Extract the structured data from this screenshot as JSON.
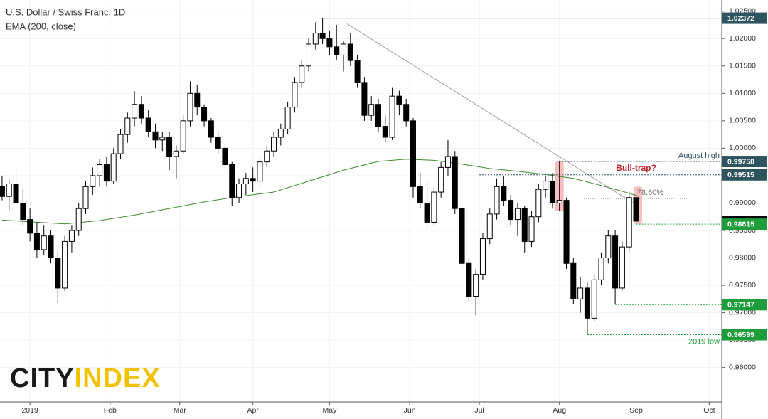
{
  "chart_data": {
    "type": "candlestick",
    "title": "U.S. Dollar / Swiss Franc, 1D",
    "subtitle": "EMA (200, close)",
    "logo": {
      "city": "CITY",
      "index": "INDEX"
    },
    "xlim": [
      -8.6,
      198.6
    ],
    "ylim": [
      0.95373,
      1.02704
    ],
    "xticks": [
      {
        "value": 0,
        "label": "2019"
      },
      {
        "value": 23,
        "label": "Feb"
      },
      {
        "value": 43,
        "label": "Mar"
      },
      {
        "value": 64,
        "label": "Apr"
      },
      {
        "value": 86,
        "label": "May"
      },
      {
        "value": 109,
        "label": "Jun"
      },
      {
        "value": 129,
        "label": "Jul"
      },
      {
        "value": 152,
        "label": "Aug"
      },
      {
        "value": 174,
        "label": "Sep"
      },
      {
        "value": 195,
        "label": "Oct"
      }
    ],
    "yticks": [
      {
        "value": 0.96,
        "label": "0.96000"
      },
      {
        "value": 0.965,
        "label": "0.96500"
      },
      {
        "value": 0.97,
        "label": "0.97000"
      },
      {
        "value": 0.975,
        "label": "0.97500"
      },
      {
        "value": 0.98,
        "label": "0.98000"
      },
      {
        "value": 0.985,
        "label": "0.98500"
      },
      {
        "value": 0.99,
        "label": "0.99000"
      },
      {
        "value": 0.995,
        "label": "0.99500"
      },
      {
        "value": 1.0,
        "label": "1.00000"
      },
      {
        "value": 1.005,
        "label": "1.00500"
      },
      {
        "value": 1.01,
        "label": "1.01000"
      },
      {
        "value": 1.015,
        "label": "1.01500"
      },
      {
        "value": 1.02,
        "label": "1.02000"
      },
      {
        "value": 1.025,
        "label": "1.02500"
      }
    ],
    "grid": true,
    "up_color": "#ffffff",
    "down_color": "#000000",
    "candles": {
      "x": [
        -8,
        -6,
        -4,
        -2,
        0,
        2,
        4,
        6,
        8,
        10,
        12,
        14,
        16,
        18,
        20,
        22,
        24,
        26,
        28,
        30,
        32,
        34,
        36,
        38,
        40,
        42,
        44,
        46,
        48,
        50,
        52,
        54,
        56,
        58,
        60,
        62,
        64,
        66,
        68,
        70,
        72,
        74,
        76,
        78,
        80,
        82,
        84,
        86,
        88,
        90,
        92,
        94,
        96,
        98,
        100,
        102,
        104,
        106,
        108,
        110,
        112,
        114,
        116,
        118,
        120,
        122,
        124,
        126,
        128,
        130,
        132,
        134,
        136,
        138,
        140,
        142,
        144,
        146,
        148,
        150,
        152,
        154,
        156,
        158,
        160,
        162,
        164,
        166,
        168,
        170,
        172,
        174
      ],
      "open": [
        0.993,
        0.9912,
        0.9935,
        0.99,
        0.987,
        0.9845,
        0.9815,
        0.984,
        0.98,
        0.9745,
        0.983,
        0.985,
        0.989,
        0.993,
        0.995,
        0.997,
        0.994,
        0.999,
        1.0025,
        1.0055,
        1.008,
        1.0055,
        1.003,
        1.0015,
        1.002,
        0.9985,
        0.9995,
        1.005,
        1.01,
        1.0075,
        1.005,
        1.002,
        1.0,
        0.997,
        0.991,
        0.9935,
        0.9945,
        0.994,
        0.9975,
        0.9995,
        1.002,
        1.0035,
        1.0075,
        1.012,
        1.015,
        1.019,
        1.021,
        1.02,
        1.0185,
        1.017,
        1.019,
        1.016,
        1.012,
        1.006,
        1.008,
        1.004,
        1.002,
        1.0095,
        1.008,
        1.005,
        0.993,
        0.99,
        0.9865,
        0.992,
        0.9965,
        0.9985,
        0.989,
        0.979,
        0.973,
        0.977,
        0.9835,
        0.988,
        0.993,
        0.9905,
        0.987,
        0.989,
        0.983,
        0.9875,
        0.9925,
        0.994,
        0.99,
        0.9905,
        0.979,
        0.9725,
        0.9745,
        0.969,
        0.976,
        0.98,
        0.984,
        0.9745,
        0.982,
        0.991
      ],
      "high": [
        0.995,
        0.9945,
        0.996,
        0.9925,
        0.989,
        0.9865,
        0.986,
        0.985,
        0.9815,
        0.984,
        0.986,
        0.99,
        0.994,
        0.9965,
        0.998,
        0.9985,
        1.0,
        1.0035,
        1.0065,
        1.0104,
        1.0095,
        1.007,
        1.0045,
        1.003,
        1.003,
        1.0005,
        1.006,
        1.0122,
        1.0115,
        1.008,
        1.0055,
        1.003,
        1.001,
        0.9975,
        0.9945,
        0.9955,
        0.9965,
        0.9985,
        1.0005,
        1.003,
        1.0045,
        1.0085,
        1.013,
        1.016,
        1.02,
        1.023,
        1.0237,
        1.0215,
        1.0225,
        1.0195,
        1.021,
        1.017,
        1.013,
        1.0095,
        1.009,
        1.006,
        1.011,
        1.0105,
        1.009,
        1.0055,
        0.9955,
        0.994,
        0.993,
        0.9975,
        1.0015,
        0.9995,
        0.9895,
        0.98,
        0.978,
        0.9845,
        0.989,
        0.9945,
        0.995,
        0.9915,
        0.99,
        0.9895,
        0.9885,
        0.9935,
        0.995,
        0.9955,
        0.9976,
        0.991,
        0.98,
        0.9765,
        0.9755,
        0.977,
        0.981,
        0.985,
        0.985,
        0.983,
        0.9921,
        0.992
      ],
      "low": [
        0.9905,
        0.9885,
        0.989,
        0.986,
        0.983,
        0.98,
        0.9805,
        0.979,
        0.9718,
        0.974,
        0.981,
        0.984,
        0.988,
        0.9915,
        0.993,
        0.993,
        0.9935,
        0.998,
        1.001,
        1.004,
        1.0045,
        1.002,
        1.0,
        0.9995,
        0.996,
        0.9945,
        0.999,
        1.004,
        1.006,
        1.004,
        1.001,
        0.999,
        0.996,
        0.9895,
        0.99,
        0.9915,
        0.992,
        0.993,
        0.9965,
        0.9985,
        1.0005,
        1.0025,
        1.0065,
        1.011,
        1.014,
        1.018,
        1.019,
        1.017,
        1.016,
        1.014,
        1.015,
        1.011,
        1.005,
        1.005,
        1.003,
        1.001,
        1.0015,
        1.006,
        1.004,
        0.991,
        0.989,
        0.9855,
        0.986,
        0.991,
        0.995,
        0.988,
        0.978,
        0.972,
        0.9695,
        0.976,
        0.9825,
        0.987,
        0.9895,
        0.986,
        0.984,
        0.981,
        0.982,
        0.9865,
        0.991,
        0.989,
        0.9885,
        0.978,
        0.9715,
        0.97,
        0.966,
        0.9685,
        0.975,
        0.979,
        0.9715,
        0.974,
        0.981,
        0.986
      ],
      "close": [
        0.9912,
        0.9935,
        0.99,
        0.987,
        0.9845,
        0.9815,
        0.984,
        0.98,
        0.9745,
        0.983,
        0.985,
        0.989,
        0.993,
        0.995,
        0.997,
        0.994,
        0.999,
        1.0025,
        1.0055,
        1.008,
        1.0055,
        1.003,
        1.0015,
        1.002,
        0.9985,
        0.9995,
        1.005,
        1.01,
        1.0075,
        1.005,
        1.002,
        1.0,
        0.997,
        0.991,
        0.9935,
        0.9945,
        0.994,
        0.9975,
        0.9995,
        1.002,
        1.0035,
        1.0075,
        1.012,
        1.015,
        1.019,
        1.021,
        1.02,
        1.0185,
        1.017,
        1.019,
        1.016,
        1.012,
        1.006,
        1.008,
        1.004,
        1.002,
        1.0095,
        1.008,
        1.005,
        0.993,
        0.99,
        0.9865,
        0.992,
        0.9965,
        0.9985,
        0.989,
        0.979,
        0.973,
        0.977,
        0.9835,
        0.988,
        0.993,
        0.9905,
        0.987,
        0.989,
        0.983,
        0.9875,
        0.9925,
        0.994,
        0.99,
        0.9905,
        0.979,
        0.9725,
        0.9745,
        0.969,
        0.976,
        0.98,
        0.984,
        0.9745,
        0.982,
        0.991,
        0.9867
      ]
    },
    "ema": {
      "color": "#3f8a2e",
      "x": [
        -8,
        10,
        20,
        30,
        40,
        50,
        60,
        70,
        80,
        90,
        100,
        108,
        116,
        124,
        132,
        140,
        148,
        156,
        164,
        172,
        175
      ],
      "values": [
        0.9869,
        0.9862,
        0.9868,
        0.9878,
        0.989,
        0.9902,
        0.9912,
        0.992,
        0.994,
        0.996,
        0.9976,
        0.998,
        0.9978,
        0.9971,
        0.9963,
        0.9958,
        0.9952,
        0.9945,
        0.9932,
        0.9918,
        0.9912
      ]
    },
    "trendline": {
      "color": "#a0a0a0",
      "x": [
        91,
        173
      ],
      "values": [
        1.0227,
        0.9901
      ]
    },
    "fib": {
      "label": "78.60%",
      "value": 0.9908,
      "x": [
        159,
        189
      ]
    },
    "highlights": [
      {
        "x": 152,
        "high": 0.9976,
        "low": 0.9885
      },
      {
        "x": 174.5,
        "high": 0.993,
        "low": 0.9862
      }
    ],
    "highlight_color": "#f08080",
    "levels": [
      {
        "value": 1.02372,
        "from_x": 84,
        "color": "#2e5460",
        "dash": false
      },
      {
        "value": 0.99758,
        "from_x": 152,
        "color": "#2e5460",
        "dash": true,
        "note": "August high"
      },
      {
        "value": 0.99515,
        "from_x": 129,
        "color": "#2e5460",
        "dash": true
      },
      {
        "value": 0.98667,
        "from_x": null,
        "color": "#000000",
        "dash": false
      },
      {
        "value": 0.98615,
        "from_x": 174,
        "color": "#1e9e3a",
        "dash": true
      },
      {
        "value": 0.97147,
        "from_x": 168,
        "color": "#1e9e3a",
        "dash": true
      },
      {
        "value": 0.96599,
        "from_x": 160,
        "color": "#1e9e3a",
        "dash": true,
        "note": "2019 low"
      }
    ],
    "bull_trap": {
      "label": "Bull-trap?",
      "color": "#c0262d",
      "x": 174,
      "value": 0.9963
    }
  }
}
